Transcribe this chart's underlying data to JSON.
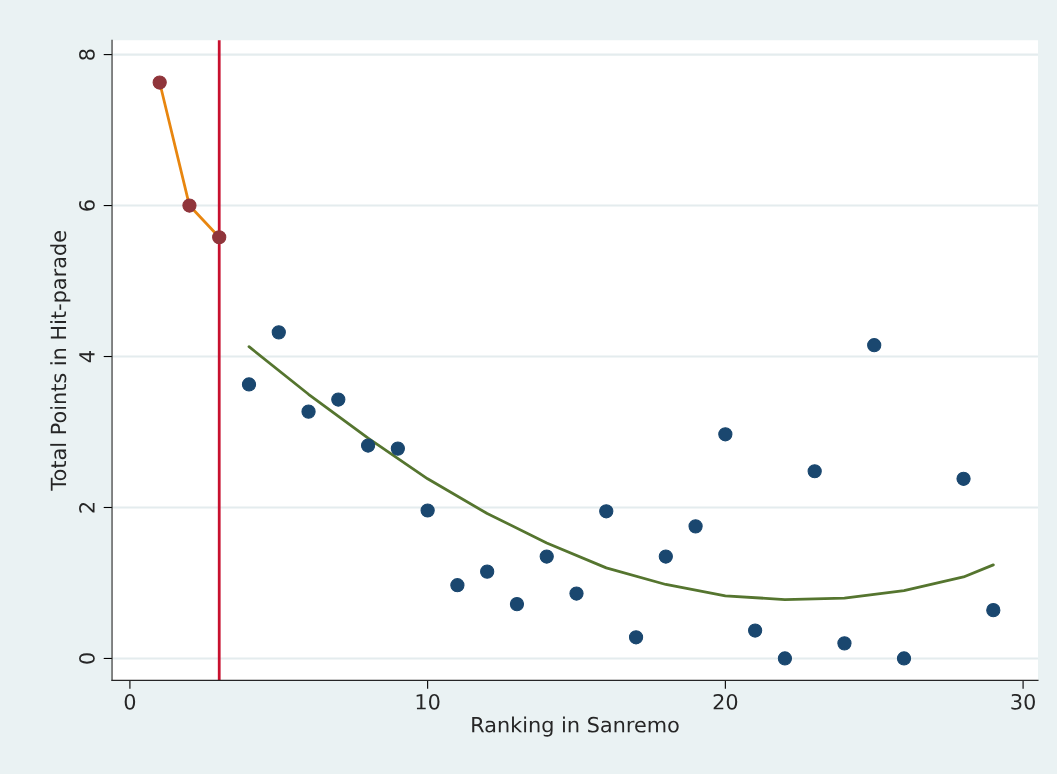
{
  "chart_data": {
    "type": "scatter",
    "xlabel": "Ranking in Sanremo",
    "ylabel": "Total Points in Hit-parade",
    "xlim": [
      -0.6,
      30.5
    ],
    "ylim": [
      -0.29,
      8.19
    ],
    "xticks": [
      0,
      10,
      20,
      30
    ],
    "yticks": [
      0,
      2,
      4,
      6,
      8
    ],
    "grid": "y",
    "legend": false,
    "ref_lines": [
      {
        "axis": "x",
        "value": 3,
        "color": "#c8102e"
      }
    ],
    "series": [
      {
        "type": "line",
        "marker": "none",
        "color": "#e8860f",
        "x": [
          1,
          2,
          3
        ],
        "values": [
          7.63,
          6.0,
          5.58
        ]
      },
      {
        "marker": "circle",
        "color": "#90353b",
        "x": [
          1,
          2,
          3
        ],
        "values": [
          7.63,
          6.0,
          5.58
        ]
      },
      {
        "marker": "circle",
        "color": "#1a476f",
        "x": [
          4,
          5,
          6,
          7,
          8,
          9,
          10,
          11,
          12,
          13,
          14,
          15,
          16,
          17,
          18,
          19,
          20,
          21,
          22,
          23,
          24,
          25,
          26,
          28,
          29
        ],
        "values": [
          3.63,
          4.32,
          3.27,
          3.43,
          2.82,
          2.78,
          1.96,
          0.97,
          1.15,
          0.72,
          1.35,
          0.86,
          1.95,
          0.28,
          1.35,
          1.75,
          2.97,
          0.37,
          0,
          2.48,
          0.2,
          4.15,
          0,
          2.38,
          0.64
        ]
      },
      {
        "type": "line",
        "marker": "none",
        "color": "#55752f",
        "x": [
          4,
          6,
          8,
          10,
          12,
          14,
          16,
          18,
          20,
          22,
          24,
          26,
          28,
          29
        ],
        "values": [
          4.13,
          3.5,
          2.92,
          2.38,
          1.92,
          1.53,
          1.2,
          0.98,
          0.83,
          0.78,
          0.8,
          0.9,
          1.08,
          1.24
        ]
      }
    ]
  }
}
